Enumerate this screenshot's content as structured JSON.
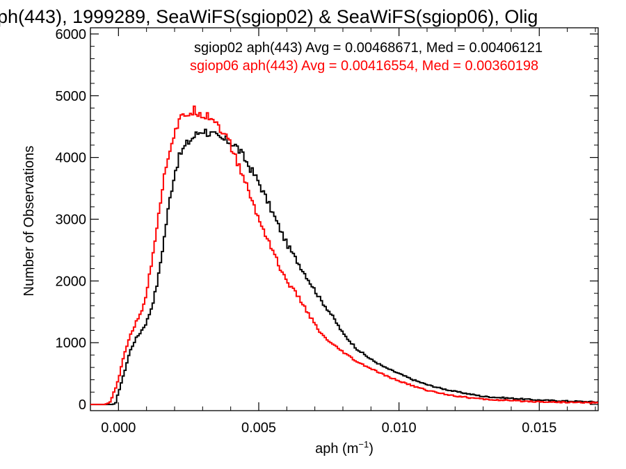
{
  "chart_data": {
    "type": "line",
    "title": "ph(443), 1999289, SeaWiFS(sgiop02) & SeaWiFS(sgiop06), Olig",
    "xlabel": "aph (m",
    "xlabel_exp": "−1",
    "xlabel_close": ")",
    "ylabel": "Number of Observations",
    "xlim": [
      -0.001,
      0.0171
    ],
    "ylim": [
      -100,
      6100
    ],
    "xticks": [
      0.0,
      0.005,
      0.01,
      0.015
    ],
    "xtick_labels": [
      "0.000",
      "0.005",
      "0.010",
      "0.015"
    ],
    "yticks": [
      0,
      1000,
      2000,
      3000,
      4000,
      5000,
      6000
    ],
    "ytick_labels": [
      "0",
      "1000",
      "2000",
      "3000",
      "4000",
      "5000",
      "6000"
    ],
    "step": "histogram",
    "series": [
      {
        "name": "sgiop02 aph(443) Avg = 0.00468671, Med = 0.00406121",
        "color": "#000000",
        "points": [
          [
            -0.001,
            0
          ],
          [
            -0.0002,
            0
          ],
          [
            -0.0001,
            20
          ],
          [
            0.0,
            200
          ],
          [
            0.0002,
            500
          ],
          [
            0.0004,
            850
          ],
          [
            0.0006,
            1050
          ],
          [
            0.0008,
            1180
          ],
          [
            0.001,
            1330
          ],
          [
            0.0012,
            1600
          ],
          [
            0.0014,
            2000
          ],
          [
            0.0016,
            2600
          ],
          [
            0.0018,
            3250
          ],
          [
            0.002,
            3750
          ],
          [
            0.0022,
            4050
          ],
          [
            0.0024,
            4200
          ],
          [
            0.0026,
            4300
          ],
          [
            0.0028,
            4380
          ],
          [
            0.003,
            4450
          ],
          [
            0.0032,
            4400
          ],
          [
            0.0034,
            4360
          ],
          [
            0.0036,
            4300
          ],
          [
            0.0038,
            4280
          ],
          [
            0.004,
            4250
          ],
          [
            0.0042,
            4180
          ],
          [
            0.0044,
            4050
          ],
          [
            0.0046,
            3900
          ],
          [
            0.0048,
            3750
          ],
          [
            0.005,
            3600
          ],
          [
            0.0052,
            3400
          ],
          [
            0.0054,
            3200
          ],
          [
            0.0056,
            3000
          ],
          [
            0.0058,
            2800
          ],
          [
            0.006,
            2600
          ],
          [
            0.0064,
            2300
          ],
          [
            0.0068,
            2000
          ],
          [
            0.0072,
            1700
          ],
          [
            0.0076,
            1450
          ],
          [
            0.008,
            1150
          ],
          [
            0.0085,
            900
          ],
          [
            0.009,
            730
          ],
          [
            0.0095,
            600
          ],
          [
            0.01,
            500
          ],
          [
            0.0105,
            400
          ],
          [
            0.011,
            320
          ],
          [
            0.0115,
            260
          ],
          [
            0.012,
            210
          ],
          [
            0.0125,
            170
          ],
          [
            0.013,
            130
          ],
          [
            0.014,
            100
          ],
          [
            0.015,
            70
          ],
          [
            0.016,
            55
          ],
          [
            0.017,
            40
          ],
          [
            0.0171,
            40
          ]
        ]
      },
      {
        "name": "sgiop06 aph(443) Avg = 0.00416554, Med = 0.00360198",
        "color": "#ff0000",
        "points": [
          [
            -0.001,
            0
          ],
          [
            -0.0005,
            0
          ],
          [
            -0.0003,
            30
          ],
          [
            -0.0002,
            150
          ],
          [
            0.0,
            400
          ],
          [
            0.0002,
            800
          ],
          [
            0.0004,
            1100
          ],
          [
            0.0006,
            1300
          ],
          [
            0.0008,
            1480
          ],
          [
            0.001,
            1800
          ],
          [
            0.0012,
            2350
          ],
          [
            0.0014,
            3000
          ],
          [
            0.0016,
            3600
          ],
          [
            0.0018,
            4100
          ],
          [
            0.002,
            4400
          ],
          [
            0.0022,
            4600
          ],
          [
            0.0024,
            4700
          ],
          [
            0.0026,
            4740
          ],
          [
            0.0028,
            4760
          ],
          [
            0.003,
            4700
          ],
          [
            0.0032,
            4680
          ],
          [
            0.0034,
            4620
          ],
          [
            0.0036,
            4500
          ],
          [
            0.0038,
            4350
          ],
          [
            0.004,
            4200
          ],
          [
            0.0042,
            3950
          ],
          [
            0.0044,
            3750
          ],
          [
            0.0046,
            3500
          ],
          [
            0.0048,
            3250
          ],
          [
            0.005,
            3000
          ],
          [
            0.0052,
            2800
          ],
          [
            0.0054,
            2600
          ],
          [
            0.0056,
            2400
          ],
          [
            0.0058,
            2150
          ],
          [
            0.006,
            2000
          ],
          [
            0.0064,
            1750
          ],
          [
            0.0068,
            1450
          ],
          [
            0.0072,
            1150
          ],
          [
            0.0076,
            980
          ],
          [
            0.008,
            850
          ],
          [
            0.0085,
            690
          ],
          [
            0.009,
            580
          ],
          [
            0.0095,
            470
          ],
          [
            0.01,
            380
          ],
          [
            0.0105,
            300
          ],
          [
            0.011,
            230
          ],
          [
            0.0115,
            180
          ],
          [
            0.012,
            140
          ],
          [
            0.0125,
            110
          ],
          [
            0.013,
            85
          ],
          [
            0.014,
            60
          ],
          [
            0.015,
            45
          ],
          [
            0.016,
            35
          ],
          [
            0.017,
            28
          ],
          [
            0.0171,
            28
          ]
        ]
      }
    ],
    "legend_placement": "top-right",
    "grid": false
  }
}
